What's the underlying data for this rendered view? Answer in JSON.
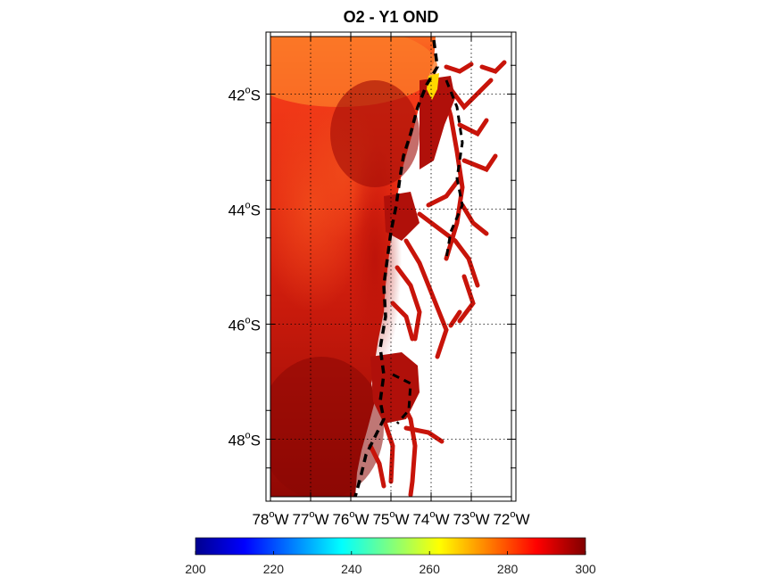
{
  "title": "O2 - Y1 OND",
  "map": {
    "region": "Chilean Patagonia fjords",
    "lon_range": [
      -78,
      -72
    ],
    "lat_range": [
      -49,
      -41
    ],
    "lat_ticks": [
      {
        "value": -42,
        "label": "42",
        "deg": "o",
        "hemi": "S"
      },
      {
        "value": -44,
        "label": "44",
        "deg": "o",
        "hemi": "S"
      },
      {
        "value": -46,
        "label": "46",
        "deg": "o",
        "hemi": "S"
      },
      {
        "value": -48,
        "label": "48",
        "deg": "o",
        "hemi": "S"
      }
    ],
    "lon_ticks": [
      {
        "value": -78,
        "label": "78",
        "deg": "o",
        "hemi": "W"
      },
      {
        "value": -77,
        "label": "77",
        "deg": "o",
        "hemi": "W"
      },
      {
        "value": -76,
        "label": "76",
        "deg": "o",
        "hemi": "W"
      },
      {
        "value": -75,
        "label": "75",
        "deg": "o",
        "hemi": "W"
      },
      {
        "value": -74,
        "label": "74",
        "deg": "o",
        "hemi": "W"
      },
      {
        "value": -73,
        "label": "73",
        "deg": "o",
        "hemi": "W"
      },
      {
        "value": -72,
        "label": "72",
        "deg": "o",
        "hemi": "W"
      }
    ],
    "grid": "dotted",
    "contour_style": "black dashed"
  },
  "colorbar": {
    "colormap": "jet",
    "min": 200,
    "max": 300,
    "ticks": [
      "200",
      "220",
      "240",
      "260",
      "280",
      "300"
    ],
    "orientation": "horizontal",
    "placement": "bottom"
  }
}
